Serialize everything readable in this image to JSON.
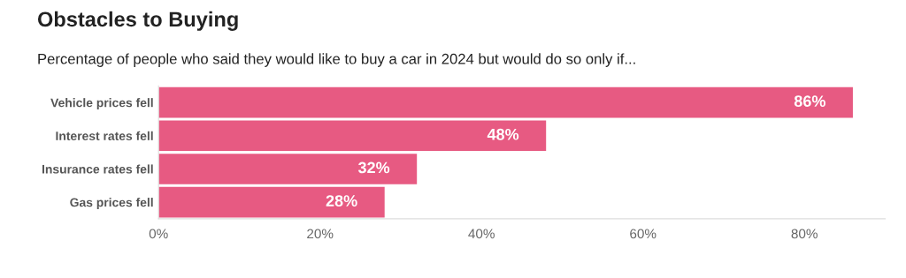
{
  "chart_data": {
    "type": "bar",
    "orientation": "horizontal",
    "title": "Obstacles to Buying",
    "subtitle": "Percentage of people who said they would like to buy a car in 2024 but would do so only if...",
    "categories": [
      "Vehicle prices fell",
      "Interest rates fell",
      "Insurance rates fell",
      "Gas prices fell"
    ],
    "values": [
      86,
      48,
      32,
      28
    ],
    "value_labels": [
      "86%",
      "48%",
      "32%",
      "28%"
    ],
    "color": "#e75a82",
    "xlim": [
      0,
      90
    ],
    "xticks": [
      {
        "value": 0,
        "label": "0%"
      },
      {
        "value": 20,
        "label": "20%"
      },
      {
        "value": 40,
        "label": "40%"
      },
      {
        "value": 60,
        "label": "60%"
      },
      {
        "value": 80,
        "label": "80%"
      }
    ],
    "grid": false,
    "legend": false
  }
}
